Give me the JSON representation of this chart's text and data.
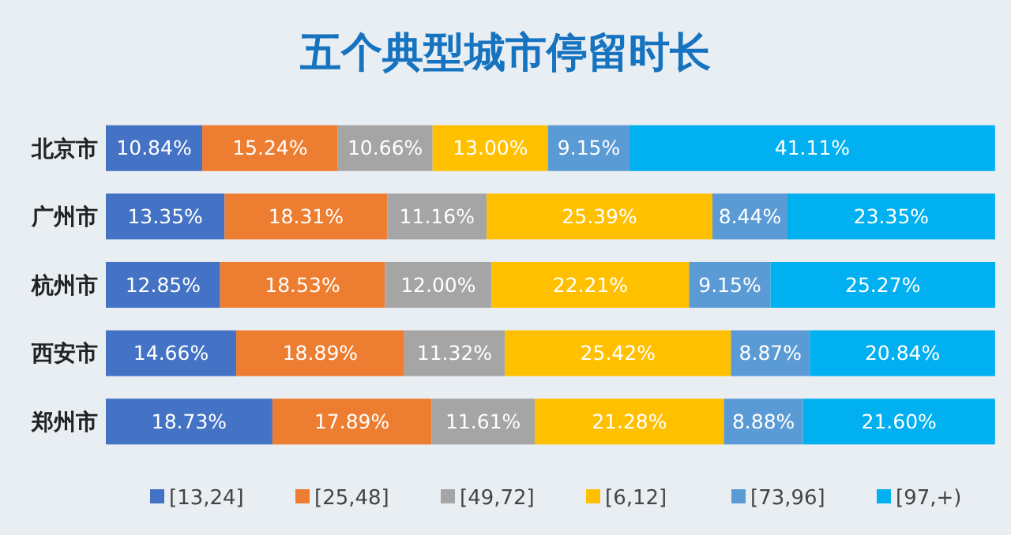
{
  "chart_data": {
    "type": "bar",
    "orientation": "horizontal",
    "stacked": true,
    "title": "五个典型城市停留时长",
    "categories": [
      "北京市",
      "广州市",
      "杭州市",
      "西安市",
      "郑州市"
    ],
    "series": [
      {
        "name": "[13,24]",
        "color": "#4472c4",
        "values": [
          10.84,
          13.35,
          12.85,
          14.66,
          18.73
        ],
        "value_labels": [
          "10.84%",
          "13.35%",
          "12.85%",
          "14.66%",
          "18.73%"
        ]
      },
      {
        "name": "[25,48]",
        "color": "#ed7d31",
        "values": [
          15.24,
          18.31,
          18.53,
          18.89,
          17.89
        ],
        "value_labels": [
          "15.24%",
          "18.31%",
          "18.53%",
          "18.89%",
          "17.89%"
        ]
      },
      {
        "name": "[49,72]",
        "color": "#a5a5a5",
        "values": [
          10.66,
          11.16,
          12.0,
          11.32,
          11.61
        ],
        "value_labels": [
          "10.66%",
          "11.16%",
          "12.00%",
          "11.32%",
          "11.61%"
        ]
      },
      {
        "name": "[6,12]",
        "color": "#ffc000",
        "values": [
          13.0,
          25.39,
          22.21,
          25.42,
          21.28
        ],
        "value_labels": [
          "13.00%",
          "25.39%",
          "22.21%",
          "25.42%",
          "21.28%"
        ]
      },
      {
        "name": "[73,96]",
        "color": "#5b9bd5",
        "values": [
          9.15,
          8.44,
          9.15,
          8.87,
          8.88
        ],
        "value_labels": [
          "9.15%",
          "8.44%",
          "9.15%",
          "8.87%",
          "8.88%"
        ]
      },
      {
        "name": "[97,+)",
        "color": "#00b0f0",
        "values": [
          41.11,
          23.35,
          25.27,
          20.84,
          21.6
        ],
        "value_labels": [
          "41.11%",
          "23.35%",
          "25.27%",
          "20.84%",
          "21.60%"
        ]
      }
    ],
    "tick_labels": "y",
    "legend": "bottom"
  }
}
